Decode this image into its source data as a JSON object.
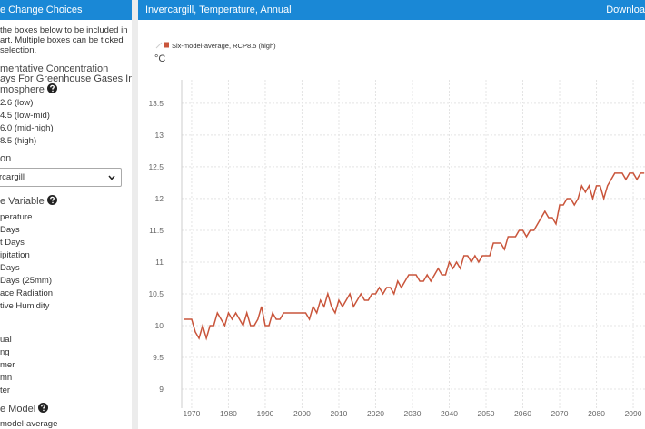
{
  "sidebar": {
    "header": "e Change Choices",
    "intro": [
      "the boxes below to be included in",
      "art. Multiple boxes can be ticked",
      "selection."
    ],
    "pathways": {
      "title": [
        "mentative Concentration",
        "ays For Greenhouse Gases In",
        "mosphere"
      ],
      "items": [
        "2.6 (low)",
        "4.5 (low-mid)",
        "6.0 (mid-high)",
        "8.5 (high)"
      ]
    },
    "location": {
      "title": "on",
      "value": "rcargill"
    },
    "variable": {
      "title": "e Variable",
      "items": [
        "perature",
        "Days",
        "t Days",
        "ipitation",
        "Days",
        "Days (25mm)",
        "ace Radiation",
        "tive Humidity"
      ]
    },
    "season": {
      "items": [
        "ual",
        "ng",
        "mer",
        "mn",
        "ter"
      ]
    },
    "model": {
      "title": "e Model",
      "items": [
        "model-average"
      ]
    }
  },
  "panel": {
    "title": "Invercargill, Temperature, Annual",
    "download": "Downloa"
  },
  "chart_data": {
    "type": "line",
    "y_label": "°C",
    "x": [
      1968,
      1969,
      1970,
      1971,
      1972,
      1973,
      1974,
      1975,
      1976,
      1977,
      1978,
      1979,
      1980,
      1981,
      1982,
      1983,
      1984,
      1985,
      1986,
      1987,
      1988,
      1989,
      1990,
      1991,
      1992,
      1993,
      1994,
      1995,
      1996,
      1997,
      1998,
      1999,
      2000,
      2001,
      2002,
      2003,
      2004,
      2005,
      2006,
      2007,
      2008,
      2009,
      2010,
      2011,
      2012,
      2013,
      2014,
      2015,
      2016,
      2017,
      2018,
      2019,
      2020,
      2021,
      2022,
      2023,
      2024,
      2025,
      2026,
      2027,
      2028,
      2029,
      2030,
      2031,
      2032,
      2033,
      2034,
      2035,
      2036,
      2037,
      2038,
      2039,
      2040,
      2041,
      2042,
      2043,
      2044,
      2045,
      2046,
      2047,
      2048,
      2049,
      2050,
      2051,
      2052,
      2053,
      2054,
      2055,
      2056,
      2057,
      2058,
      2059,
      2060,
      2061,
      2062,
      2063,
      2064,
      2065,
      2066,
      2067,
      2068,
      2069,
      2070,
      2071,
      2072,
      2073,
      2074,
      2075,
      2076,
      2077,
      2078,
      2079,
      2080,
      2081,
      2082,
      2083,
      2084,
      2085,
      2086,
      2087,
      2088,
      2089,
      2090,
      2091,
      2092,
      2093
    ],
    "series": [
      {
        "name": "Six-model-average, RCP8.5 (high)",
        "color": "#c9553b",
        "values": [
          10.1,
          10.1,
          10.1,
          9.9,
          9.8,
          10.0,
          9.8,
          10.0,
          10.0,
          10.2,
          10.1,
          10.0,
          10.2,
          10.1,
          10.2,
          10.1,
          10.0,
          10.2,
          10.0,
          10.0,
          10.1,
          10.3,
          10.0,
          10.0,
          10.2,
          10.1,
          10.1,
          10.2,
          10.2,
          10.2,
          10.2,
          10.2,
          10.2,
          10.2,
          10.1,
          10.3,
          10.2,
          10.4,
          10.3,
          10.5,
          10.3,
          10.2,
          10.4,
          10.3,
          10.4,
          10.5,
          10.3,
          10.4,
          10.5,
          10.4,
          10.4,
          10.5,
          10.5,
          10.6,
          10.5,
          10.6,
          10.6,
          10.5,
          10.7,
          10.6,
          10.7,
          10.8,
          10.8,
          10.8,
          10.7,
          10.7,
          10.8,
          10.7,
          10.8,
          10.9,
          10.8,
          10.8,
          11.0,
          10.9,
          11.0,
          10.9,
          11.1,
          11.1,
          11.0,
          11.1,
          11.0,
          11.1,
          11.1,
          11.1,
          11.3,
          11.3,
          11.3,
          11.2,
          11.4,
          11.4,
          11.4,
          11.5,
          11.5,
          11.4,
          11.5,
          11.5,
          11.6,
          11.7,
          11.8,
          11.7,
          11.7,
          11.6,
          11.9,
          11.9,
          12.0,
          12.0,
          11.9,
          12.0,
          12.2,
          12.1,
          12.2,
          12.0,
          12.2,
          12.2,
          12.0,
          12.2,
          12.3,
          12.4,
          12.4,
          12.4,
          12.3,
          12.4,
          12.4,
          12.3,
          12.4,
          12.4
        ]
      }
    ],
    "xlim": [
      1967.3,
      2093.2
    ],
    "xticks": [
      1970,
      1980,
      1990,
      2000,
      2010,
      2020,
      2030,
      2040,
      2050,
      2060,
      2070,
      2080,
      2090
    ],
    "ylim": [
      8.7,
      13.87
    ],
    "yticks": [
      9,
      9.5,
      10,
      10.5,
      11,
      11.5,
      12,
      12.5,
      13,
      13.5
    ],
    "grid": true
  }
}
